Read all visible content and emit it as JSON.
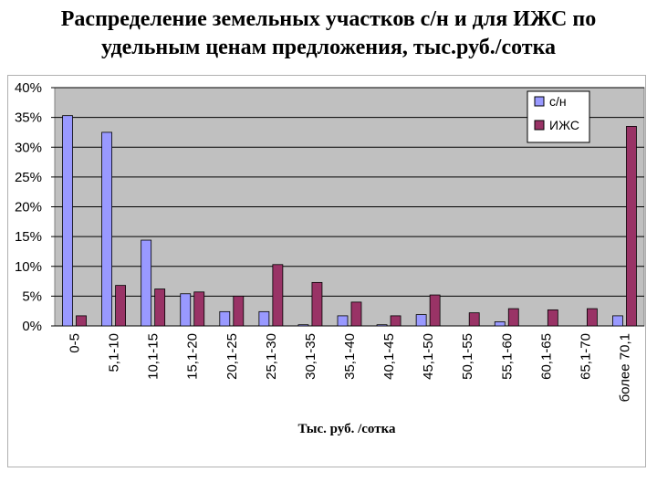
{
  "title_line1": "Распределение земельных участков с/н и для ИЖС по",
  "title_line2": "удельным ценам предложения, тыс.руб./сотка",
  "chart_data": {
    "type": "bar",
    "categories": [
      "0-5",
      "5,1-10",
      "10,1-15",
      "15,1-20",
      "20,1-25",
      "25,1-30",
      "30,1-35",
      "35,1-40",
      "40,1-45",
      "45,1-50",
      "50,1-55",
      "55,1-60",
      "60,1-65",
      "65,1-70",
      "более 70,1"
    ],
    "series": [
      {
        "name": "с/н",
        "color": "#9999ff",
        "values": [
          35.3,
          32.5,
          14.4,
          5.4,
          2.4,
          2.4,
          0.2,
          1.7,
          0.2,
          1.9,
          0,
          0.7,
          0,
          0,
          1.7
        ]
      },
      {
        "name": "ИЖС",
        "color": "#993366",
        "values": [
          1.7,
          6.8,
          6.2,
          5.7,
          5.0,
          10.3,
          7.3,
          4.0,
          1.7,
          5.2,
          2.2,
          2.9,
          2.7,
          2.9,
          33.5
        ]
      }
    ],
    "xlabel": "Тыс. руб. /сотка",
    "ylabel": "",
    "ylim": [
      0,
      40
    ],
    "yticks": [
      "0%",
      "5%",
      "10%",
      "15%",
      "20%",
      "25%",
      "30%",
      "35%",
      "40%"
    ],
    "ytick_values": [
      0,
      5,
      10,
      15,
      20,
      25,
      30,
      35,
      40
    ],
    "grid": true,
    "legend_position": "top-right",
    "plot_background": "#c0c0c0"
  }
}
